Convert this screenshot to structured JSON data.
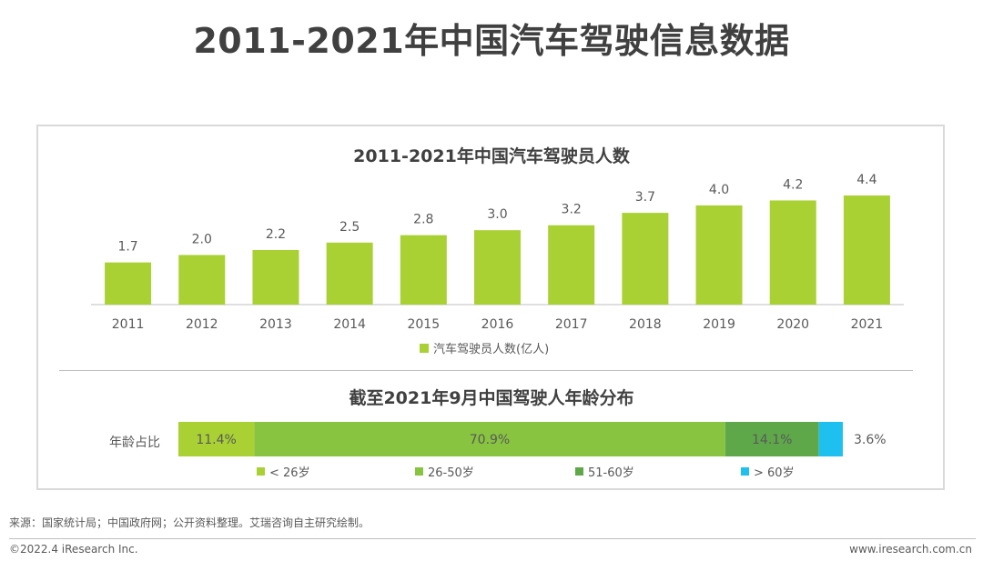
{
  "page": {
    "title": "2011-2021年中国汽车驾驶信息数据",
    "source": "来源：国家统计局；中国政府网；公开资料整理。艾瑞咨询自主研究绘制。",
    "copyright": "©2022.4 iResearch Inc.",
    "website": "www.iresearch.com.cn"
  },
  "chart_data": [
    {
      "type": "bar",
      "title": "2011-2021年中国汽车驾驶员人数",
      "categories": [
        "2011",
        "2012",
        "2013",
        "2014",
        "2015",
        "2016",
        "2017",
        "2018",
        "2019",
        "2020",
        "2021"
      ],
      "series": [
        {
          "name": "汽车驾驶员人数(亿人)",
          "values": [
            1.7,
            2.0,
            2.2,
            2.5,
            2.8,
            3.0,
            3.2,
            3.7,
            4.0,
            4.2,
            4.4
          ],
          "value_labels": [
            "1.7",
            "2.0",
            "2.2",
            "2.5",
            "2.8",
            "3.0",
            "3.2",
            "3.7",
            "4.0",
            "4.2",
            "4.4"
          ],
          "color": "#a9d134"
        }
      ],
      "ylim": [
        0,
        4.4
      ],
      "grid": false,
      "legend_position": "bottom"
    },
    {
      "type": "bar",
      "stacked": true,
      "orientation": "horizontal",
      "title": "截至2021年9月中国驾驶人年龄分布",
      "categories": [
        "年龄占比"
      ],
      "series": [
        {
          "name": "< 26岁",
          "values": [
            11.4
          ],
          "label": "11.4%",
          "color": "#a9d134"
        },
        {
          "name": "26-50岁",
          "values": [
            70.9
          ],
          "label": "70.9%",
          "color": "#88c43f"
        },
        {
          "name": "51-60岁",
          "values": [
            14.1
          ],
          "label": "14.1%",
          "color": "#5ea84a"
        },
        {
          "name": "> 60岁",
          "values": [
            3.6
          ],
          "label": "3.6%",
          "color": "#1ec0ef"
        }
      ],
      "xlim": [
        0,
        100
      ],
      "legend_position": "bottom"
    }
  ]
}
